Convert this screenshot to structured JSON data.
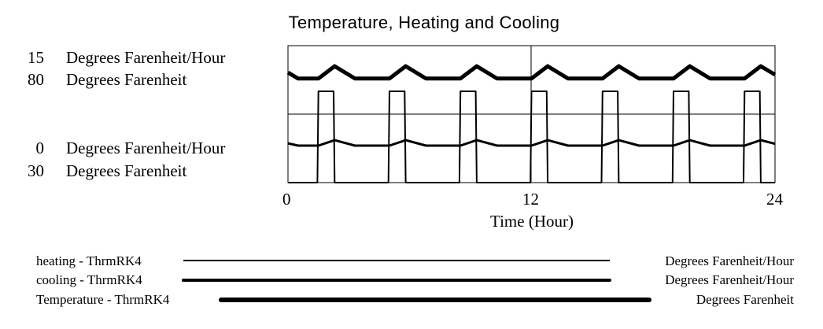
{
  "chart_data": {
    "type": "line",
    "title": "Temperature, Heating and Cooling",
    "xlabel": "Time (Hour)",
    "xlim": [
      0,
      24
    ],
    "xticks": [
      "0",
      "12",
      "24"
    ],
    "grid": true,
    "axes": [
      {
        "max": "15",
        "min": "0",
        "unit": "Degrees Farenheit/Hour",
        "range": [
          0,
          15
        ]
      },
      {
        "max": "80",
        "min": "30",
        "unit": "Degrees Farenheit",
        "range": [
          30,
          80
        ]
      }
    ],
    "series": [
      {
        "name": "heating - ThrmRK4",
        "unit": "Degrees Farenheit/Hour",
        "axis": 0,
        "stroke": 2,
        "points": [
          [
            0,
            0
          ],
          [
            1.45,
            0
          ],
          [
            1.5,
            10
          ],
          [
            2.25,
            10
          ],
          [
            2.3,
            0
          ],
          [
            4.95,
            0
          ],
          [
            5,
            10
          ],
          [
            5.75,
            10
          ],
          [
            5.8,
            0
          ],
          [
            8.45,
            0
          ],
          [
            8.5,
            10
          ],
          [
            9.25,
            10
          ],
          [
            9.3,
            0
          ],
          [
            11.95,
            0
          ],
          [
            12,
            10
          ],
          [
            12.75,
            10
          ],
          [
            12.8,
            0
          ],
          [
            15.45,
            0
          ],
          [
            15.5,
            10
          ],
          [
            16.25,
            10
          ],
          [
            16.3,
            0
          ],
          [
            18.95,
            0
          ],
          [
            19,
            10
          ],
          [
            19.75,
            10
          ],
          [
            19.8,
            0
          ],
          [
            22.45,
            0
          ],
          [
            22.5,
            10
          ],
          [
            23.25,
            10
          ],
          [
            23.3,
            0
          ],
          [
            24,
            0
          ]
        ]
      },
      {
        "name": "cooling - ThrmRK4",
        "unit": "Degrees Farenheit/Hour",
        "axis": 0,
        "stroke": 3,
        "points": [
          [
            0,
            4.3
          ],
          [
            0.5,
            4.05
          ],
          [
            1.5,
            4.05
          ],
          [
            2.3,
            4.65
          ],
          [
            3.3,
            4.05
          ],
          [
            5,
            4.05
          ],
          [
            5.8,
            4.65
          ],
          [
            6.8,
            4.05
          ],
          [
            8.5,
            4.05
          ],
          [
            9.3,
            4.65
          ],
          [
            10.3,
            4.05
          ],
          [
            12,
            4.05
          ],
          [
            12.8,
            4.65
          ],
          [
            13.8,
            4.05
          ],
          [
            15.5,
            4.05
          ],
          [
            16.3,
            4.65
          ],
          [
            17.3,
            4.05
          ],
          [
            19,
            4.05
          ],
          [
            19.8,
            4.65
          ],
          [
            20.8,
            4.05
          ],
          [
            22.5,
            4.05
          ],
          [
            23.3,
            4.65
          ],
          [
            24,
            4.25
          ]
        ]
      },
      {
        "name": "Temperature - ThrmRK4",
        "unit": "Degrees Farenheit",
        "axis": 1,
        "stroke": 5,
        "points": [
          [
            0,
            70.2
          ],
          [
            0.5,
            68
          ],
          [
            1.5,
            68
          ],
          [
            2.3,
            72.5
          ],
          [
            3.3,
            68
          ],
          [
            5,
            68
          ],
          [
            5.8,
            72.5
          ],
          [
            6.8,
            68
          ],
          [
            8.5,
            68
          ],
          [
            9.3,
            72.5
          ],
          [
            10.3,
            68
          ],
          [
            12,
            68
          ],
          [
            12.8,
            72.5
          ],
          [
            13.8,
            68
          ],
          [
            15.5,
            68
          ],
          [
            16.3,
            72.5
          ],
          [
            17.3,
            68
          ],
          [
            19,
            68
          ],
          [
            19.8,
            72.5
          ],
          [
            20.8,
            68
          ],
          [
            22.5,
            68
          ],
          [
            23.3,
            72.5
          ],
          [
            24,
            69.4
          ]
        ]
      }
    ],
    "legend_placement": "bottom"
  }
}
